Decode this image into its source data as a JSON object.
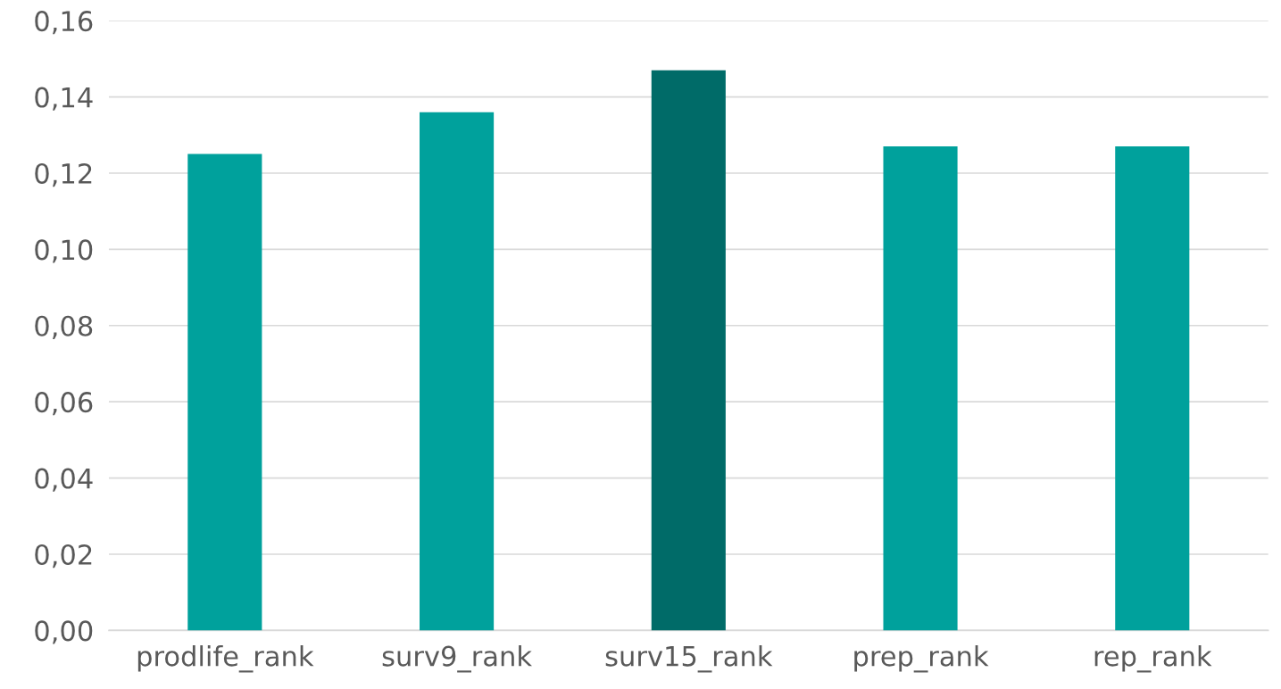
{
  "chart_data": {
    "type": "bar",
    "categories": [
      "prodlife_rank",
      "surv9_rank",
      "surv15_rank",
      "prep_rank",
      "rep_rank"
    ],
    "values": [
      0.125,
      0.136,
      0.147,
      0.127,
      0.127
    ],
    "colors": [
      "#00a19c",
      "#00a19c",
      "#006b68",
      "#00a19c",
      "#00a19c"
    ],
    "ylim": [
      0,
      0.16
    ],
    "yticks": [
      {
        "value": 0,
        "label": "0,00"
      },
      {
        "value": 0.02,
        "label": "0,02"
      },
      {
        "value": 0.04,
        "label": "0,04"
      },
      {
        "value": 0.06,
        "label": "0,06"
      },
      {
        "value": 0.08,
        "label": "0,08"
      },
      {
        "value": 0.1,
        "label": "0,10"
      },
      {
        "value": 0.12,
        "label": "0,12"
      },
      {
        "value": 0.14,
        "label": "0,14"
      },
      {
        "value": 0.16,
        "label": "0,16"
      }
    ],
    "grid": "y"
  }
}
